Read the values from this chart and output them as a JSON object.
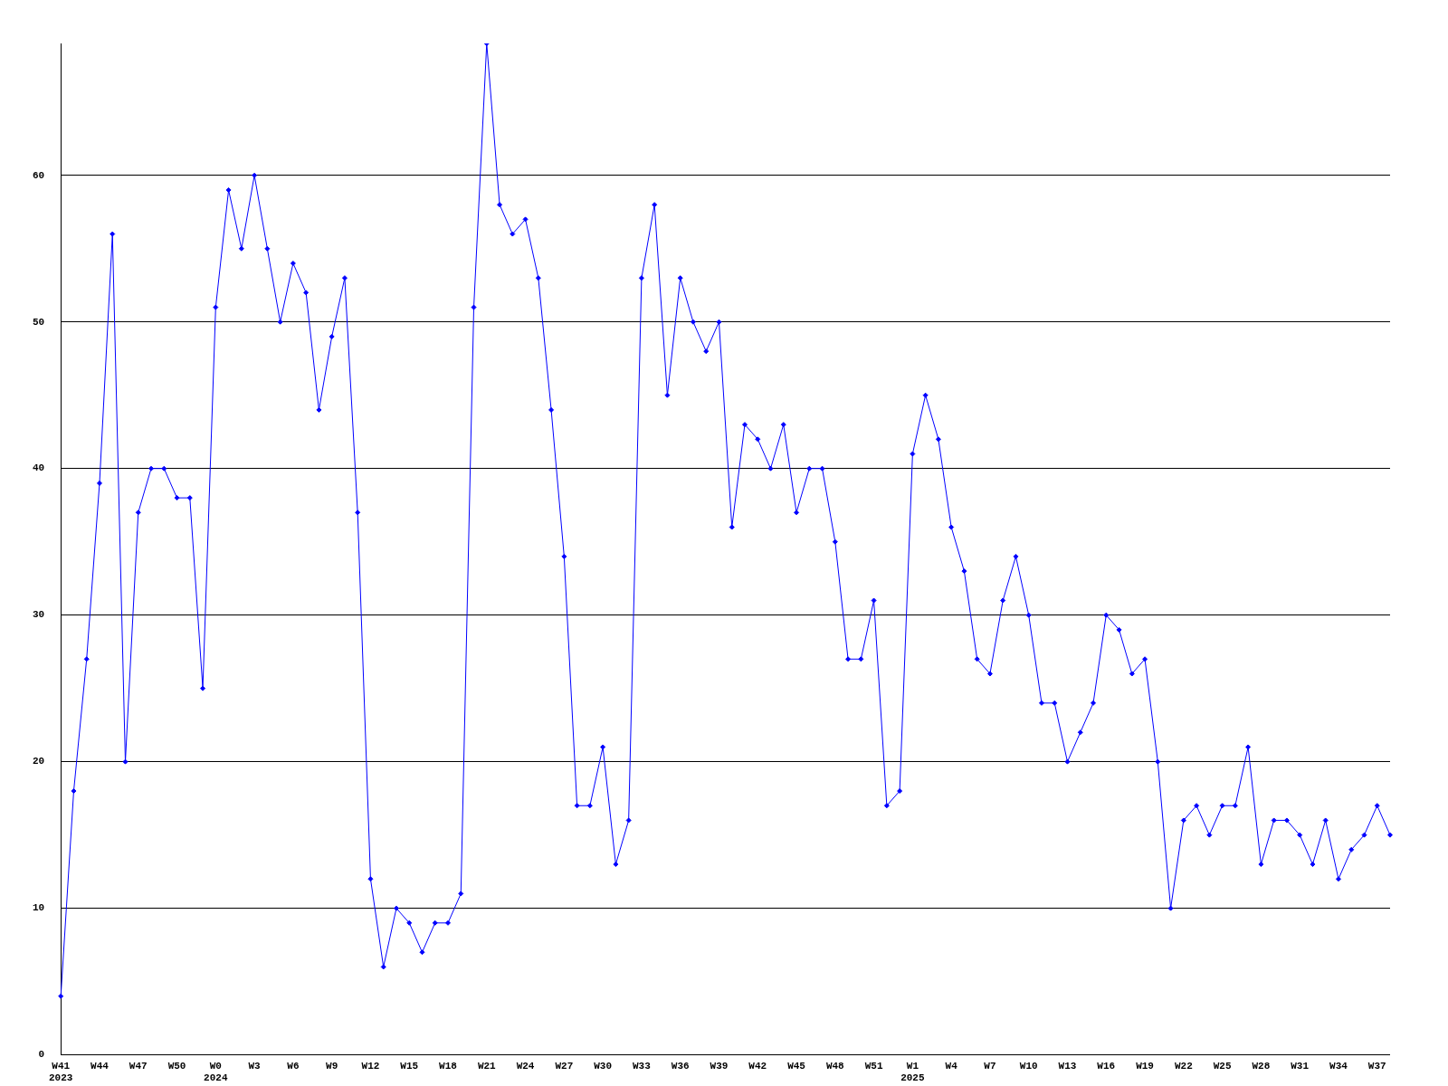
{
  "chart_data": {
    "type": "line",
    "categories": [
      "W41\n2023",
      null,
      null,
      "W44",
      null,
      null,
      "W47",
      null,
      null,
      "W50",
      null,
      null,
      "W0\n2024",
      null,
      null,
      "W3",
      null,
      null,
      "W6",
      null,
      null,
      "W9",
      null,
      null,
      "W12",
      null,
      null,
      "W15",
      null,
      null,
      "W18",
      null,
      null,
      "W21",
      null,
      null,
      "W24",
      null,
      null,
      "W27",
      null,
      null,
      "W30",
      null,
      null,
      "W33",
      null,
      null,
      "W36",
      null,
      null,
      "W39",
      null,
      null,
      "W42",
      null,
      null,
      "W45",
      null,
      null,
      "W48",
      null,
      null,
      "W51",
      null,
      null,
      "W1\n2025",
      null,
      null,
      "W4",
      null,
      null,
      "W7",
      null,
      null,
      "W10",
      null,
      null,
      "W13",
      null,
      null,
      "W16",
      null,
      null,
      "W19",
      null,
      null,
      "W22",
      null,
      null,
      "W25",
      null,
      null,
      "W28",
      null,
      null,
      "W31",
      null,
      null,
      "W34",
      null,
      null,
      "W37",
      null
    ],
    "series": [
      {
        "color": "#0000ff",
        "values": [
          4,
          18,
          27,
          39,
          56,
          20,
          37,
          40,
          40,
          38,
          38,
          25,
          51,
          59,
          55,
          60,
          55,
          50,
          54,
          52,
          44,
          49,
          53,
          37,
          12,
          6,
          10,
          9,
          7,
          9,
          9,
          11,
          51,
          69,
          58,
          56,
          57,
          53,
          44,
          34,
          17,
          17,
          21,
          13,
          16,
          53,
          58,
          45,
          53,
          50,
          48,
          50,
          36,
          43,
          42,
          40,
          43,
          37,
          40,
          40,
          35,
          27,
          27,
          31,
          17,
          18,
          41,
          45,
          42,
          36,
          33,
          27,
          26,
          31,
          34,
          30,
          24,
          24,
          20,
          22,
          24,
          30,
          29,
          26,
          27,
          20,
          10,
          16,
          17,
          15,
          17,
          17,
          21,
          13,
          16,
          16,
          15,
          13,
          16,
          12,
          14,
          15,
          17,
          15
        ]
      }
    ],
    "ylim": [
      0,
      69
    ],
    "yticks": [
      0,
      10,
      20,
      30,
      40,
      50,
      60
    ],
    "grid": "y",
    "legend": false,
    "marker": "diamond",
    "line_style": "solid"
  }
}
